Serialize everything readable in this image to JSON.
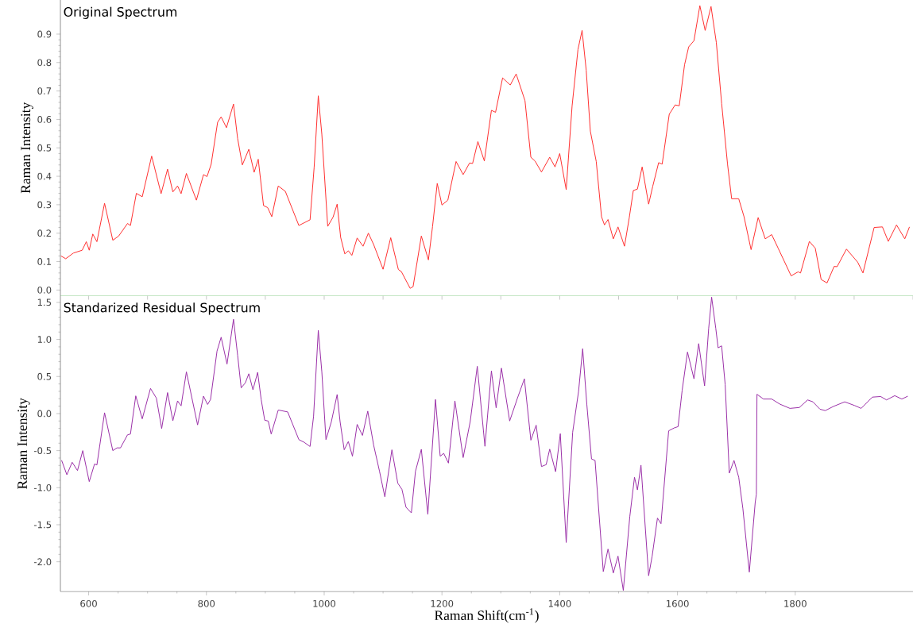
{
  "chart_data": [
    {
      "type": "line",
      "title": "Original Spectrum",
      "ylabel": "Raman Intensity",
      "xlim": [
        552,
        2000
      ],
      "ylim": [
        -0.02,
        1.02
      ],
      "yticks": [
        {
          "value": 0,
          "label": "0.0"
        },
        0.1,
        0.2,
        0.3,
        0.4,
        0.5,
        0.6,
        0.7,
        0.8,
        0.9
      ],
      "tick_labels": "y",
      "line_style": "solid",
      "series": [
        {
          "color": "#ff3030",
          "x": [
            553,
            561,
            574,
            589,
            596,
            601,
            607,
            614,
            627,
            641,
            651,
            666,
            671,
            681,
            691,
            707,
            723,
            734,
            743,
            751,
            757,
            766,
            783,
            795,
            801,
            808,
            819,
            825,
            834,
            846,
            853,
            861,
            872,
            881,
            888,
            897,
            904,
            911,
            922,
            934,
            957,
            976,
            983,
            990,
            996,
            1006,
            1015,
            1022,
            1028,
            1035,
            1041,
            1047,
            1056,
            1066,
            1075,
            1084,
            1100,
            1113,
            1126,
            1131,
            1146,
            1151,
            1165,
            1177,
            1184,
            1192,
            1200,
            1210,
            1224,
            1236,
            1247,
            1252,
            1261,
            1272,
            1284,
            1291,
            1303,
            1316,
            1326,
            1341,
            1351,
            1358,
            1369,
            1383,
            1392,
            1400,
            1411,
            1421,
            1431,
            1438,
            1445,
            1452,
            1462,
            1471,
            1476,
            1482,
            1491,
            1499,
            1510,
            1518,
            1525,
            1532,
            1540,
            1551,
            1558,
            1568,
            1574,
            1586,
            1596,
            1603,
            1612,
            1619,
            1628,
            1638,
            1647,
            1657,
            1666,
            1675,
            1685,
            1692,
            1704,
            1713,
            1725,
            1737,
            1749,
            1760,
            1771,
            1793,
            1805,
            1809,
            1824,
            1834,
            1844,
            1854,
            1866,
            1871,
            1887,
            1906,
            1915,
            1934,
            1948,
            1958,
            1972,
            1986,
            1994
          ],
          "values": [
            0.12,
            0.11,
            0.13,
            0.14,
            0.17,
            0.14,
            0.197,
            0.17,
            0.305,
            0.175,
            0.19,
            0.234,
            0.227,
            0.34,
            0.328,
            0.471,
            0.339,
            0.425,
            0.345,
            0.366,
            0.339,
            0.41,
            0.316,
            0.406,
            0.399,
            0.442,
            0.59,
            0.609,
            0.571,
            0.654,
            0.533,
            0.44,
            0.495,
            0.414,
            0.46,
            0.297,
            0.29,
            0.258,
            0.366,
            0.347,
            0.227,
            0.247,
            0.433,
            0.683,
            0.548,
            0.224,
            0.256,
            0.302,
            0.185,
            0.127,
            0.138,
            0.122,
            0.183,
            0.154,
            0.2,
            0.16,
            0.073,
            0.184,
            0.072,
            0.065,
            0.006,
            0.012,
            0.19,
            0.106,
            0.223,
            0.375,
            0.299,
            0.316,
            0.452,
            0.406,
            0.447,
            0.445,
            0.522,
            0.454,
            0.632,
            0.625,
            0.746,
            0.721,
            0.76,
            0.666,
            0.467,
            0.454,
            0.415,
            0.467,
            0.433,
            0.48,
            0.353,
            0.647,
            0.846,
            0.913,
            0.773,
            0.559,
            0.452,
            0.258,
            0.229,
            0.248,
            0.18,
            0.222,
            0.154,
            0.253,
            0.35,
            0.355,
            0.433,
            0.302,
            0.365,
            0.448,
            0.443,
            0.618,
            0.651,
            0.648,
            0.792,
            0.855,
            0.877,
            1.0,
            0.913,
            0.997,
            0.87,
            0.656,
            0.443,
            0.321,
            0.321,
            0.258,
            0.142,
            0.255,
            0.18,
            0.195,
            0.147,
            0.05,
            0.064,
            0.06,
            0.171,
            0.147,
            0.037,
            0.025,
            0.083,
            0.082,
            0.144,
            0.098,
            0.06,
            0.22,
            0.222,
            0.171,
            0.229,
            0.18,
            0.222
          ]
        }
      ]
    },
    {
      "type": "line",
      "title": "Standarized Residual Spectrum",
      "xlabel": "Raman Shift(cm$^{-1}$)",
      "ylabel": "Raman Intensity",
      "xlim": [
        552,
        2000
      ],
      "ylim": [
        -2.4,
        1.59
      ],
      "xticks": [
        600,
        800,
        1000,
        1200,
        1400,
        1600,
        1800
      ],
      "yticks": [
        {
          "value": -2,
          "label": "-2.0"
        },
        -1.5,
        {
          "value": -1,
          "label": "-1.0"
        },
        -0.5,
        {
          "value": 0,
          "label": "0.0"
        },
        0.5,
        {
          "value": 1,
          "label": "1.0"
        },
        1.5
      ],
      "line_style": "solid",
      "series": [
        {
          "color": "#9b30a8",
          "x": [
            554,
            563,
            572,
            581,
            590,
            601,
            610,
            614,
            627,
            641,
            648,
            654,
            666,
            671,
            680,
            691,
            705,
            715,
            724,
            734,
            743,
            751,
            757,
            766,
            785,
            795,
            802,
            807,
            818,
            825,
            835,
            846,
            853,
            859,
            866,
            872,
            879,
            887,
            893,
            899,
            905,
            910,
            922,
            938,
            957,
            966,
            976,
            982,
            990,
            996,
            1003,
            1012,
            1022,
            1027,
            1034,
            1041,
            1048,
            1056,
            1065,
            1074,
            1084,
            1094,
            1103,
            1115,
            1125,
            1132,
            1139,
            1148,
            1155,
            1165,
            1176,
            1189,
            1197,
            1203,
            1211,
            1222,
            1236,
            1248,
            1260,
            1273,
            1284,
            1292,
            1301,
            1315,
            1328,
            1340,
            1351,
            1360,
            1369,
            1377,
            1383,
            1393,
            1401,
            1411,
            1422,
            1432,
            1439,
            1446,
            1454,
            1460,
            1474,
            1482,
            1491,
            1499,
            1508,
            1519,
            1527,
            1532,
            1538,
            1551,
            1557,
            1566,
            1572,
            1585,
            1594,
            1601,
            1608,
            1617,
            1628,
            1636,
            1646,
            1653,
            1658,
            1665,
            1669,
            1675,
            1681,
            1688,
            1696,
            1704,
            1711,
            1722,
            1732,
            1734,
            1735,
            1746,
            1760,
            1774,
            1791,
            1807,
            1821,
            1830,
            1842,
            1851,
            1865,
            1884,
            1901,
            1912,
            1931,
            1945,
            1955,
            1969,
            1981,
            1991
          ],
          "values": [
            -0.63,
            -0.825,
            -0.657,
            -0.769,
            -0.5,
            -0.918,
            -0.68,
            -0.694,
            0.011,
            -0.5,
            -0.463,
            -0.463,
            -0.287,
            -0.276,
            0.239,
            -0.071,
            0.339,
            0.209,
            -0.202,
            0.283,
            -0.097,
            0.171,
            0.104,
            0.563,
            -0.153,
            0.235,
            0.123,
            0.19,
            0.843,
            1.03,
            0.668,
            1.272,
            0.787,
            0.347,
            0.414,
            0.537,
            0.321,
            0.556,
            0.19,
            -0.09,
            -0.101,
            -0.276,
            0.048,
            0.022,
            -0.351,
            -0.388,
            -0.444,
            -0.034,
            1.123,
            0.563,
            -0.351,
            -0.116,
            0.257,
            -0.108,
            -0.489,
            -0.377,
            -0.575,
            -0.146,
            -0.295,
            0.033,
            -0.426,
            -0.78,
            -1.123,
            -0.489,
            -0.94,
            -1.022,
            -1.265,
            -1.34,
            -0.78,
            -0.482,
            -1.358,
            0.19,
            -0.575,
            -0.537,
            -0.668,
            0.171,
            -0.594,
            -0.108,
            0.638,
            -0.442,
            0.575,
            0.078,
            0.613,
            -0.1,
            0.203,
            0.469,
            -0.359,
            -0.157,
            -0.715,
            -0.689,
            -0.48,
            -0.784,
            -0.271,
            -1.74,
            -0.252,
            0.298,
            0.875,
            0.127,
            -0.613,
            -0.632,
            -2.132,
            -1.828,
            -2.151,
            -1.923,
            -2.386,
            -1.391,
            -0.86,
            -1.03,
            -0.696,
            -2.188,
            -1.923,
            -1.41,
            -1.486,
            -0.233,
            -0.195,
            -0.176,
            0.317,
            0.83,
            0.469,
            0.944,
            0.374,
            1.152,
            1.57,
            1.152,
            0.887,
            0.913,
            0.393,
            -0.803,
            -0.632,
            -0.86,
            -1.277,
            -2.139,
            -1.201,
            -1.087,
            0.26,
            0.196,
            0.196,
            0.127,
            0.07,
            0.082,
            0.184,
            0.158,
            0.059,
            0.04,
            0.097,
            0.158,
            0.108,
            0.07,
            0.222,
            0.23,
            0.184,
            0.241,
            0.196,
            0.234
          ]
        }
      ]
    }
  ]
}
